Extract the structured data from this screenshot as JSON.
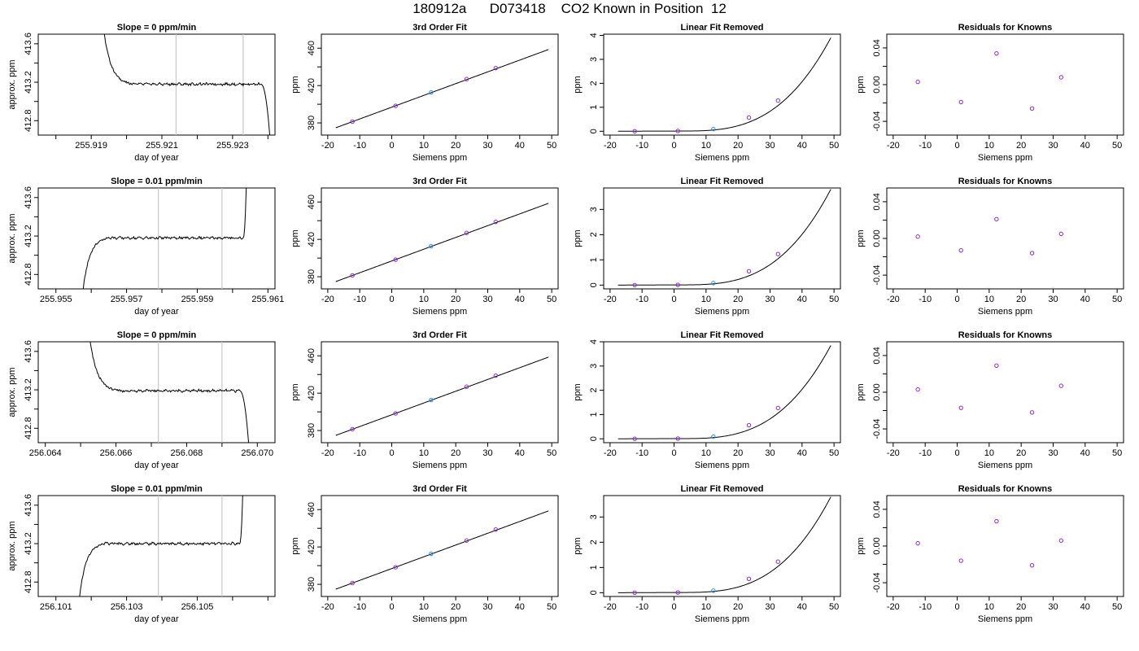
{
  "figure": {
    "title": "180912a      D073418    CO2 Known in Position  12"
  },
  "chart_data": [
    {
      "type": "line",
      "row": 0,
      "panel": "trace",
      "title": "Slope =  0  ppm/min",
      "xlabel": "day of year",
      "ylabel": "approx. ppm",
      "xlim": [
        255.9175,
        255.9242
      ],
      "ylim": [
        412.65,
        413.7
      ],
      "xticks": [
        255.918,
        255.919,
        255.92,
        255.921,
        255.922,
        255.923,
        255.924
      ],
      "xtick_labels": [
        "",
        "255.919",
        "",
        "255.921",
        "",
        "255.923",
        ""
      ],
      "yticks": [
        412.8,
        413.0,
        413.2,
        413.4,
        413.6
      ],
      "ytick_labels": [
        "412.8",
        "",
        "413.2",
        "",
        "413.6"
      ],
      "vlines": [
        255.9214,
        255.9233
      ],
      "trace": {
        "start_level": 413.9,
        "drop_x": [
          255.9193,
          255.9202
        ],
        "level": 413.18,
        "end_x": [
          255.9238,
          255.9241
        ],
        "end_level": 412.4
      }
    },
    {
      "type": "line",
      "row": 1,
      "panel": "trace",
      "title": "Slope =  0.01  ppm/min",
      "xlabel": "day of year",
      "ylabel": "approx. ppm",
      "xlim": [
        255.9545,
        255.9612
      ],
      "ylim": [
        412.65,
        413.7
      ],
      "xticks": [
        255.955,
        255.956,
        255.957,
        255.958,
        255.959,
        255.96,
        255.961
      ],
      "xtick_labels": [
        "255.955",
        "",
        "255.957",
        "",
        "255.959",
        "",
        "255.961"
      ],
      "yticks": [
        412.8,
        413.0,
        413.2,
        413.4,
        413.6
      ],
      "ytick_labels": [
        "412.8",
        "",
        "413.2",
        "",
        "413.6"
      ],
      "vlines": [
        255.9579,
        255.9597
      ],
      "trace": {
        "start_level": 412.4,
        "drop_x": [
          255.9557,
          255.9565
        ],
        "level": 413.18,
        "end_x": [
          255.9603,
          255.9604
        ],
        "end_level": 413.9
      }
    },
    {
      "type": "line",
      "row": 2,
      "panel": "trace",
      "title": "Slope =  0  ppm/min",
      "xlabel": "day of year",
      "ylabel": "approx. ppm",
      "xlim": [
        256.0638,
        256.0705
      ],
      "ylim": [
        412.65,
        413.7
      ],
      "xticks": [
        256.064,
        256.065,
        256.066,
        256.067,
        256.068,
        256.069,
        256.07
      ],
      "xtick_labels": [
        "256.064",
        "",
        "256.066",
        "",
        "256.068",
        "",
        "256.070"
      ],
      "yticks": [
        412.8,
        413.0,
        413.2,
        413.4,
        413.6
      ],
      "ytick_labels": [
        "412.8",
        "",
        "413.2",
        "",
        "413.6"
      ],
      "vlines": [
        256.0672,
        256.069
      ],
      "trace": {
        "start_level": 413.9,
        "drop_x": [
          256.0652,
          256.0661
        ],
        "level": 413.19,
        "end_x": [
          256.0695,
          256.0698
        ],
        "end_level": 412.4
      }
    },
    {
      "type": "line",
      "row": 3,
      "panel": "trace",
      "title": "Slope =  0.01  ppm/min",
      "xlabel": "day of year",
      "ylabel": "approx. ppm",
      "xlim": [
        256.1005,
        256.1072
      ],
      "ylim": [
        412.65,
        413.7
      ],
      "xticks": [
        256.101,
        256.102,
        256.103,
        256.104,
        256.105,
        256.106,
        256.107
      ],
      "xtick_labels": [
        "256.101",
        "",
        "256.103",
        "",
        "256.105",
        "",
        ""
      ],
      "yticks": [
        412.8,
        413.0,
        413.2,
        413.4,
        413.6
      ],
      "ytick_labels": [
        "412.8",
        "",
        "413.2",
        "",
        "413.6"
      ],
      "vlines": [
        256.1039,
        256.1057
      ],
      "trace": {
        "start_level": 412.4,
        "drop_x": [
          256.1016,
          256.1024
        ],
        "level": 413.2,
        "end_x": [
          256.1062,
          256.1063
        ],
        "end_level": 413.9
      }
    },
    {
      "type": "scatter",
      "row": 0,
      "panel": "fit",
      "title": "3rd Order Fit",
      "xlabel": "Siemens ppm",
      "ylabel": "ppm",
      "xlim": [
        -22,
        52
      ],
      "ylim": [
        367,
        475
      ],
      "xticks": [
        -20,
        -10,
        0,
        10,
        20,
        30,
        40,
        50
      ],
      "xtick_labels": [
        "-20",
        "-10",
        "0",
        "10",
        "20",
        "30",
        "40",
        "50"
      ],
      "yticks": [
        380,
        400,
        420,
        440,
        460
      ],
      "ytick_labels": [
        "380",
        "",
        "420",
        "",
        "460"
      ],
      "points": {
        "x": [
          -12.3,
          1.2,
          12.3,
          23.4,
          32.5
        ],
        "y": [
          381.4,
          398.3,
          412.7,
          426.9,
          438.7
        ]
      },
      "curve": {
        "x0": -17.5,
        "x1": 49,
        "c0": 396.86,
        "c1": 1.26,
        "c2": 0,
        "c3": 0
      }
    },
    {
      "type": "scatter",
      "row": 1,
      "panel": "fit",
      "title": "3rd Order Fit",
      "xlabel": "Siemens ppm",
      "ylabel": "ppm",
      "xlim": [
        -22,
        52
      ],
      "ylim": [
        367,
        475
      ],
      "xticks": [
        -20,
        -10,
        0,
        10,
        20,
        30,
        40,
        50
      ],
      "xtick_labels": [
        "-20",
        "-10",
        "0",
        "10",
        "20",
        "30",
        "40",
        "50"
      ],
      "yticks": [
        380,
        400,
        420,
        440,
        460
      ],
      "ytick_labels": [
        "380",
        "",
        "420",
        "",
        "460"
      ],
      "points": {
        "x": [
          -12.3,
          1.2,
          12.3,
          23.4,
          32.5
        ],
        "y": [
          381.4,
          398.3,
          412.7,
          426.9,
          438.7
        ]
      },
      "curve": {
        "x0": -17.5,
        "x1": 49,
        "c0": 396.86,
        "c1": 1.26,
        "c2": 0,
        "c3": 0
      }
    },
    {
      "type": "scatter",
      "row": 2,
      "panel": "fit",
      "title": "3rd Order Fit",
      "xlabel": "Siemens ppm",
      "ylabel": "ppm",
      "xlim": [
        -22,
        52
      ],
      "ylim": [
        367,
        475
      ],
      "xticks": [
        -20,
        -10,
        0,
        10,
        20,
        30,
        40,
        50
      ],
      "xtick_labels": [
        "-20",
        "-10",
        "0",
        "10",
        "20",
        "30",
        "40",
        "50"
      ],
      "yticks": [
        380,
        400,
        420,
        440,
        460
      ],
      "ytick_labels": [
        "380",
        "",
        "420",
        "",
        "460"
      ],
      "points": {
        "x": [
          -12.3,
          1.2,
          12.3,
          23.4,
          32.5
        ],
        "y": [
          381.4,
          398.3,
          412.7,
          426.9,
          438.7
        ]
      },
      "curve": {
        "x0": -17.5,
        "x1": 49,
        "c0": 396.86,
        "c1": 1.26,
        "c2": 0,
        "c3": 0
      }
    },
    {
      "type": "scatter",
      "row": 3,
      "panel": "fit",
      "title": "3rd Order Fit",
      "xlabel": "Siemens ppm",
      "ylabel": "ppm",
      "xlim": [
        -22,
        52
      ],
      "ylim": [
        367,
        475
      ],
      "xticks": [
        -20,
        -10,
        0,
        10,
        20,
        30,
        40,
        50
      ],
      "xtick_labels": [
        "-20",
        "-10",
        "0",
        "10",
        "20",
        "30",
        "40",
        "50"
      ],
      "yticks": [
        380,
        400,
        420,
        440,
        460
      ],
      "ytick_labels": [
        "380",
        "",
        "420",
        "",
        "460"
      ],
      "points": {
        "x": [
          -12.3,
          1.2,
          12.3,
          23.4,
          32.5
        ],
        "y": [
          381.4,
          398.3,
          412.7,
          426.9,
          438.7
        ]
      },
      "curve": {
        "x0": -17.5,
        "x1": 49,
        "c0": 396.86,
        "c1": 1.26,
        "c2": 0,
        "c3": 0
      }
    },
    {
      "type": "scatter",
      "row": 0,
      "panel": "linear-removed",
      "title": "Linear Fit Removed",
      "xlabel": "Siemens ppm",
      "ylabel": "ppm",
      "xlim": [
        -22,
        52
      ],
      "ylim": [
        -0.16,
        4.05
      ],
      "xticks": [
        -20,
        -10,
        0,
        10,
        20,
        30,
        40,
        50
      ],
      "xtick_labels": [
        "-20",
        "-10",
        "0",
        "10",
        "20",
        "30",
        "40",
        "50"
      ],
      "yticks": [
        0,
        1,
        2,
        3,
        4
      ],
      "ytick_labels": [
        "0",
        "1",
        "2",
        "3",
        "4"
      ],
      "points": {
        "x": [
          -12.3,
          1.2,
          12.3,
          23.4,
          32.5
        ],
        "y": [
          0.0,
          0.01,
          0.09,
          0.57,
          1.28
        ]
      },
      "curve": {
        "x0": -17.5,
        "x1": 49,
        "p": 3.9
      }
    },
    {
      "type": "scatter",
      "row": 1,
      "panel": "linear-removed",
      "title": "Linear Fit Removed",
      "xlabel": "Siemens ppm",
      "ylabel": "ppm",
      "xlim": [
        -22,
        52
      ],
      "ylim": [
        -0.15,
        3.85
      ],
      "xticks": [
        -20,
        -10,
        0,
        10,
        20,
        30,
        40,
        50
      ],
      "xtick_labels": [
        "-20",
        "-10",
        "0",
        "10",
        "20",
        "30",
        "40",
        "50"
      ],
      "yticks": [
        0,
        1,
        2,
        3
      ],
      "ytick_labels": [
        "0",
        "1",
        "2",
        "3"
      ],
      "points": {
        "x": [
          -12.3,
          1.2,
          12.3,
          23.4,
          32.5
        ],
        "y": [
          0.0,
          0.01,
          0.08,
          0.55,
          1.23
        ]
      },
      "curve": {
        "x0": -17.5,
        "x1": 49,
        "p": 3.8
      }
    },
    {
      "type": "scatter",
      "row": 2,
      "panel": "linear-removed",
      "title": "Linear Fit Removed",
      "xlabel": "Siemens ppm",
      "ylabel": "ppm",
      "xlim": [
        -22,
        52
      ],
      "ylim": [
        -0.16,
        4.0
      ],
      "xticks": [
        -20,
        -10,
        0,
        10,
        20,
        30,
        40,
        50
      ],
      "xtick_labels": [
        "-20",
        "-10",
        "0",
        "10",
        "20",
        "30",
        "40",
        "50"
      ],
      "yticks": [
        0,
        1,
        2,
        3,
        4
      ],
      "ytick_labels": [
        "0",
        "1",
        "2",
        "3",
        "4"
      ],
      "points": {
        "x": [
          -12.3,
          1.2,
          12.3,
          23.4,
          32.5
        ],
        "y": [
          0.0,
          0.01,
          0.09,
          0.56,
          1.27
        ]
      },
      "curve": {
        "x0": -17.5,
        "x1": 49,
        "p": 3.85
      }
    },
    {
      "type": "scatter",
      "row": 3,
      "panel": "linear-removed",
      "title": "Linear Fit Removed",
      "xlabel": "Siemens ppm",
      "ylabel": "ppm",
      "xlim": [
        -22,
        52
      ],
      "ylim": [
        -0.15,
        3.85
      ],
      "xticks": [
        -20,
        -10,
        0,
        10,
        20,
        30,
        40,
        50
      ],
      "xtick_labels": [
        "-20",
        "-10",
        "0",
        "10",
        "20",
        "30",
        "40",
        "50"
      ],
      "yticks": [
        0,
        1,
        2,
        3
      ],
      "ytick_labels": [
        "0",
        "1",
        "2",
        "3"
      ],
      "points": {
        "x": [
          -12.3,
          1.2,
          12.3,
          23.4,
          32.5
        ],
        "y": [
          0.0,
          0.01,
          0.08,
          0.55,
          1.23
        ]
      },
      "curve": {
        "x0": -17.5,
        "x1": 49,
        "p": 3.8
      }
    },
    {
      "type": "scatter",
      "row": 0,
      "panel": "residuals",
      "title": "Residuals for Knowns",
      "xlabel": "Siemens ppm",
      "ylabel": "ppm",
      "xlim": [
        -22,
        52
      ],
      "ylim": [
        -0.055,
        0.055
      ],
      "xticks": [
        -20,
        -10,
        0,
        10,
        20,
        30,
        40,
        50
      ],
      "xtick_labels": [
        "-20",
        "-10",
        "0",
        "10",
        "20",
        "30",
        "40",
        "50"
      ],
      "yticks": [
        -0.04,
        -0.02,
        0.0,
        0.02,
        0.04
      ],
      "ytick_labels": [
        "-0.04",
        "",
        "0.00",
        "",
        "0.04"
      ],
      "points": {
        "x": [
          -12.3,
          1.2,
          12.3,
          23.4,
          32.5
        ],
        "y": [
          0.003,
          -0.019,
          0.034,
          -0.026,
          0.008
        ]
      }
    },
    {
      "type": "scatter",
      "row": 1,
      "panel": "residuals",
      "title": "Residuals for Knowns",
      "xlabel": "Siemens ppm",
      "ylabel": "ppm",
      "xlim": [
        -22,
        52
      ],
      "ylim": [
        -0.055,
        0.055
      ],
      "xticks": [
        -20,
        -10,
        0,
        10,
        20,
        30,
        40,
        50
      ],
      "xtick_labels": [
        "-20",
        "-10",
        "0",
        "10",
        "20",
        "30",
        "40",
        "50"
      ],
      "yticks": [
        -0.04,
        -0.02,
        0.0,
        0.02,
        0.04
      ],
      "ytick_labels": [
        "-0.04",
        "",
        "0.00",
        "",
        "0.04"
      ],
      "points": {
        "x": [
          -12.3,
          1.2,
          12.3,
          23.4,
          32.5
        ],
        "y": [
          0.002,
          -0.013,
          0.021,
          -0.016,
          0.005
        ]
      }
    },
    {
      "type": "scatter",
      "row": 2,
      "panel": "residuals",
      "title": "Residuals for Knowns",
      "xlabel": "Siemens ppm",
      "ylabel": "ppm",
      "xlim": [
        -22,
        52
      ],
      "ylim": [
        -0.055,
        0.055
      ],
      "xticks": [
        -20,
        -10,
        0,
        10,
        20,
        30,
        40,
        50
      ],
      "xtick_labels": [
        "-20",
        "-10",
        "0",
        "10",
        "20",
        "30",
        "40",
        "50"
      ],
      "yticks": [
        -0.04,
        -0.02,
        0.0,
        0.02,
        0.04
      ],
      "ytick_labels": [
        "-0.04",
        "",
        "0.00",
        "",
        "0.04"
      ],
      "points": {
        "x": [
          -12.3,
          1.2,
          12.3,
          23.4,
          32.5
        ],
        "y": [
          0.003,
          -0.017,
          0.029,
          -0.022,
          0.007
        ]
      }
    },
    {
      "type": "scatter",
      "row": 3,
      "panel": "residuals",
      "title": "Residuals for Knowns",
      "xlabel": "Siemens ppm",
      "ylabel": "ppm",
      "xlim": [
        -22,
        52
      ],
      "ylim": [
        -0.055,
        0.055
      ],
      "xticks": [
        -20,
        -10,
        0,
        10,
        20,
        30,
        40,
        50
      ],
      "xtick_labels": [
        "-20",
        "-10",
        "0",
        "10",
        "20",
        "30",
        "40",
        "50"
      ],
      "yticks": [
        -0.04,
        -0.02,
        0.0,
        0.02,
        0.04
      ],
      "ytick_labels": [
        "-0.04",
        "",
        "0.00",
        "",
        "0.04"
      ],
      "points": {
        "x": [
          -12.3,
          1.2,
          12.3,
          23.4,
          32.5
        ],
        "y": [
          0.003,
          -0.016,
          0.027,
          -0.021,
          0.006
        ]
      }
    }
  ],
  "colors": {
    "trace_line": "#000000",
    "reference_vlines": "#c8c8c8",
    "fit_line": "#000000",
    "points_outline": "#8a2be2",
    "point_accent": "#1e90ff",
    "axes": "#000000"
  }
}
